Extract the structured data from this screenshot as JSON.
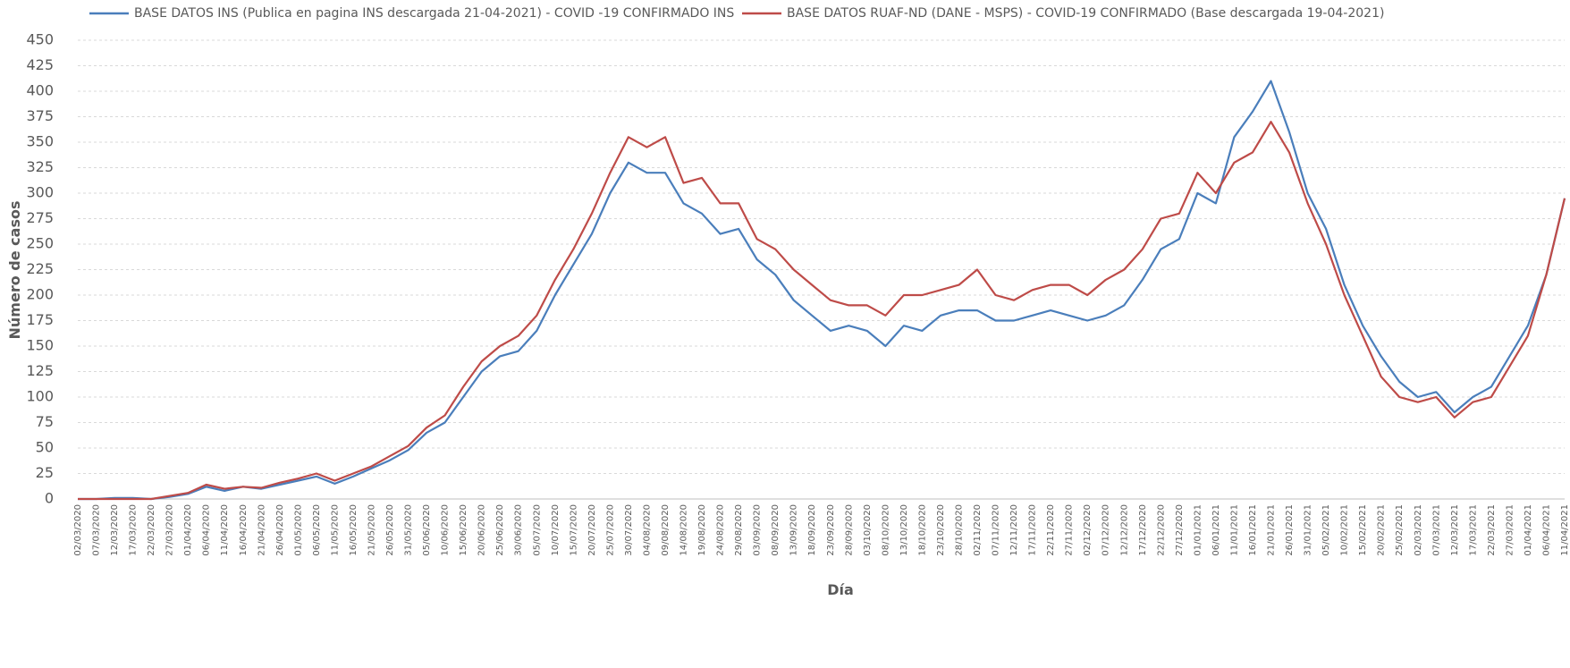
{
  "chart_data": {
    "type": "line",
    "x_label": "Día",
    "y_label": "Número de casos",
    "categories": [
      "02/03/2020",
      "07/03/2020",
      "12/03/2020",
      "17/03/2020",
      "22/03/2020",
      "27/03/2020",
      "01/04/2020",
      "06/04/2020",
      "11/04/2020",
      "16/04/2020",
      "21/04/2020",
      "26/04/2020",
      "01/05/2020",
      "06/05/2020",
      "11/05/2020",
      "16/05/2020",
      "21/05/2020",
      "26/05/2020",
      "31/05/2020",
      "05/06/2020",
      "10/06/2020",
      "15/06/2020",
      "20/06/2020",
      "25/06/2020",
      "30/06/2020",
      "05/07/2020",
      "10/07/2020",
      "15/07/2020",
      "20/07/2020",
      "25/07/2020",
      "30/07/2020",
      "04/08/2020",
      "09/08/2020",
      "14/08/2020",
      "19/08/2020",
      "24/08/2020",
      "29/08/2020",
      "03/09/2020",
      "08/09/2020",
      "13/09/2020",
      "18/09/2020",
      "23/09/2020",
      "28/09/2020",
      "03/10/2020",
      "08/10/2020",
      "13/10/2020",
      "18/10/2020",
      "23/10/2020",
      "28/10/2020",
      "02/11/2020",
      "07/11/2020",
      "12/11/2020",
      "17/11/2020",
      "22/11/2020",
      "27/11/2020",
      "02/12/2020",
      "07/12/2020",
      "12/12/2020",
      "17/12/2020",
      "22/12/2020",
      "27/12/2020",
      "01/01/2021",
      "06/01/2021",
      "11/01/2021",
      "16/01/2021",
      "21/01/2021",
      "26/01/2021",
      "31/01/2021",
      "05/02/2021",
      "10/02/2021",
      "15/02/2021",
      "20/02/2021",
      "25/02/2021",
      "02/03/2021",
      "07/03/2021",
      "12/03/2021",
      "17/03/2021",
      "22/03/2021",
      "27/03/2021",
      "01/04/2021",
      "06/04/2021",
      "11/04/2021"
    ],
    "series": [
      {
        "name": "BASE DATOS INS (Publica en pagina INS descargada 21-04-2021) - COVID -19 CONFIRMADO INS",
        "color": "#4a7ebb",
        "values": [
          0,
          0,
          1,
          1,
          0,
          2,
          5,
          12,
          8,
          12,
          10,
          14,
          18,
          22,
          15,
          22,
          30,
          38,
          48,
          65,
          75,
          100,
          125,
          140,
          145,
          165,
          200,
          230,
          260,
          300,
          330,
          320,
          320,
          290,
          280,
          260,
          265,
          235,
          220,
          195,
          180,
          165,
          170,
          165,
          150,
          170,
          165,
          180,
          185,
          185,
          175,
          175,
          180,
          185,
          180,
          175,
          180,
          190,
          215,
          245,
          255,
          300,
          290,
          355,
          380,
          410,
          360,
          300,
          265,
          210,
          170,
          140,
          115,
          100,
          105,
          85,
          100,
          110,
          140,
          170,
          220,
          295
        ]
      },
      {
        "name": "BASE DATOS RUAF-ND (DANE - MSPS) - COVID-19 CONFIRMADO (Base descargada 19-04-2021)",
        "color": "#be4b48",
        "values": [
          0,
          0,
          0,
          0,
          0,
          3,
          6,
          14,
          10,
          12,
          11,
          16,
          20,
          25,
          18,
          25,
          32,
          42,
          52,
          70,
          82,
          110,
          135,
          150,
          160,
          180,
          215,
          245,
          280,
          320,
          355,
          345,
          355,
          310,
          315,
          290,
          290,
          255,
          245,
          225,
          210,
          195,
          190,
          190,
          180,
          200,
          200,
          205,
          210,
          225,
          200,
          195,
          205,
          210,
          210,
          200,
          215,
          225,
          245,
          275,
          280,
          320,
          300,
          330,
          340,
          370,
          340,
          290,
          250,
          200,
          160,
          120,
          100,
          95,
          100,
          80,
          95,
          100,
          130,
          160,
          220,
          295
        ]
      }
    ],
    "ylim": [
      0,
      450
    ],
    "yticks": [
      0,
      25,
      50,
      75,
      100,
      125,
      150,
      175,
      200,
      225,
      250,
      275,
      300,
      325,
      350,
      375,
      400,
      425,
      450
    ],
    "grid": true,
    "legend": "top"
  }
}
